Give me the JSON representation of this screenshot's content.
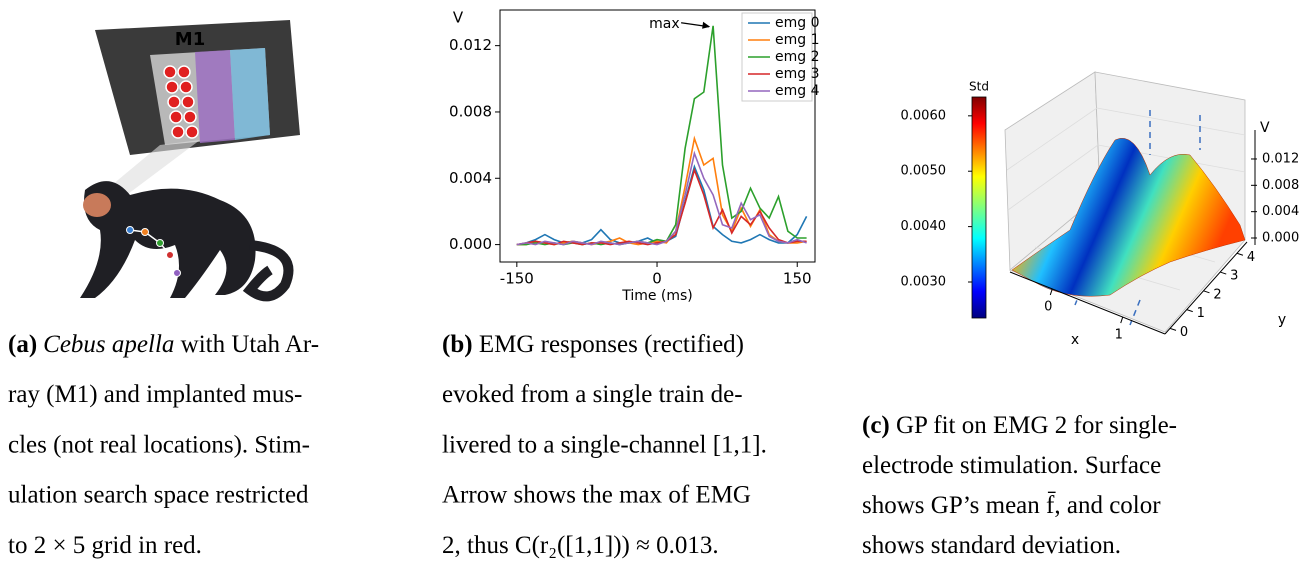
{
  "panel_a": {
    "array_label": "M1",
    "caption": {
      "label": "(a)",
      "italic": "Cebus apella",
      "lines": [
        " with Utah Ar-",
        "ray (M1) and implanted mus-",
        "cles (not real locations). Stim-",
        "ulation search space restricted",
        "to 2 × 5 grid in red."
      ]
    }
  },
  "panel_b": {
    "caption": {
      "label": "(b)",
      "lines": [
        " EMG responses (rectified)",
        "evoked from a single train de-",
        "livered to a single-channel [1,1].",
        "Arrow shows the max of EMG",
        "2, thus C(r₂([1,1])) ≈ 0.013."
      ]
    }
  },
  "panel_c": {
    "caption": {
      "label": "(c)",
      "lines": [
        " GP fit on EMG 2 for single-",
        "electrode stimulation. Surface",
        "shows GP’s mean f̄, and color",
        "shows standard deviation."
      ]
    }
  },
  "chart_data": [
    {
      "type": "line",
      "xlabel": "Time (ms)",
      "ylabel": "V",
      "xlim": [
        -168,
        169
      ],
      "ylim": [
        -0.00105,
        0.01415
      ],
      "xticks": [
        -150,
        0,
        150
      ],
      "yticks": [
        {
          "value": 0,
          "label": "0.000"
        },
        0.004,
        0.008,
        0.012
      ],
      "legend": "upper right",
      "annotation": {
        "text": "max",
        "x": 60,
        "y": 0.0132
      },
      "x": [
        -150,
        -140,
        -130,
        -120,
        -110,
        -100,
        -90,
        -80,
        -70,
        -60,
        -50,
        -40,
        -30,
        -20,
        -10,
        0,
        10,
        20,
        30,
        40,
        50,
        60,
        70,
        80,
        90,
        100,
        110,
        120,
        130,
        140,
        150,
        160
      ],
      "series": [
        {
          "name": "emg 0",
          "color": "#1f77b4",
          "values": [
            0,
            0.0001,
            0.0003,
            0.0006,
            0.0003,
            0.0001,
            0.0002,
            0.0001,
            0.0003,
            0.0009,
            0.0003,
            0.0001,
            0.0001,
            0.0002,
            0.0004,
            0.0001,
            0.0002,
            0.0005,
            0.0026,
            0.0047,
            0.0033,
            0.0011,
            0.0006,
            0.0002,
            0.0001,
            0.0003,
            0.0006,
            0.0003,
            0.0001,
            0.0001,
            0.0006,
            0.0017
          ]
        },
        {
          "name": "emg 1",
          "color": "#ff7f0e",
          "values": [
            0,
            0,
            0.0002,
            0.0001,
            0,
            0.0001,
            0.0002,
            0.0001,
            0,
            0.0001,
            0.0002,
            0.0004,
            0.0001,
            0,
            0.0001,
            0.0002,
            0.0001,
            0.0008,
            0.0035,
            0.0064,
            0.0048,
            0.0052,
            0.0018,
            0.0008,
            0.0022,
            0.0011,
            0.0021,
            0.0006,
            0.0002,
            0.0001,
            0.0001,
            0.0002
          ]
        },
        {
          "name": "emg 2",
          "color": "#2ca02c",
          "values": [
            0,
            0,
            0.0001,
            0,
            0.0001,
            0,
            0.0001,
            0,
            0.0001,
            0,
            0.0001,
            0,
            0.0001,
            0.0002,
            0.0001,
            0.0003,
            0.0002,
            0.0012,
            0.0058,
            0.0088,
            0.0092,
            0.0132,
            0.0048,
            0.0016,
            0.002,
            0.0034,
            0.0022,
            0.0016,
            0.0029,
            0.0008,
            0.0004,
            0.0004
          ]
        },
        {
          "name": "emg 3",
          "color": "#d62728",
          "values": [
            0,
            0.0001,
            0.0002,
            0.0001,
            0,
            0.0002,
            0.0001,
            0,
            0.0001,
            0.0001,
            0,
            0.0001,
            0.0002,
            0.0001,
            0,
            0.0001,
            0.0002,
            0.0006,
            0.0025,
            0.0045,
            0.003,
            0.001,
            0.0021,
            0.0007,
            0.0017,
            0.0012,
            0.002,
            0.001,
            0.0003,
            0.0001,
            0.0002,
            0.0002
          ]
        },
        {
          "name": "emg 4",
          "color": "#9467bd",
          "values": [
            0,
            0.0001,
            0,
            0.0002,
            0.0001,
            0,
            0.0002,
            0.0001,
            0,
            0.0002,
            0.0001,
            0,
            0.0001,
            0.0002,
            0.0001,
            0,
            0.0002,
            0.0008,
            0.003,
            0.0055,
            0.004,
            0.003,
            0.0012,
            0.001,
            0.0025,
            0.0015,
            0.0018,
            0.0005,
            0.0002,
            0.0001,
            0.0003,
            0.0001
          ]
        }
      ]
    },
    {
      "type": "surface",
      "xlabel": "x",
      "ylabel": "y",
      "zlabel": "V",
      "colorbar_label": "Std",
      "clim": [
        0.00235,
        0.00634
      ],
      "cticks": [
        {
          "value": 0.003,
          "label": "0.0030"
        },
        {
          "value": 0.004,
          "label": "0.0040"
        },
        {
          "value": 0.005,
          "label": "0.0050"
        },
        {
          "value": 0.006,
          "label": "0.0060"
        }
      ],
      "zlim": [
        -0.0005,
        0.0135
      ],
      "zticks": [
        {
          "value": 0,
          "label": "0.000"
        },
        0.004,
        0.008,
        0.012
      ],
      "xlim": [
        -0.6,
        1.6
      ],
      "xticks": [
        0,
        1
      ],
      "ylim": [
        -0.3,
        4.6
      ],
      "yticks": [
        0,
        1,
        2,
        3,
        4
      ]
    }
  ]
}
